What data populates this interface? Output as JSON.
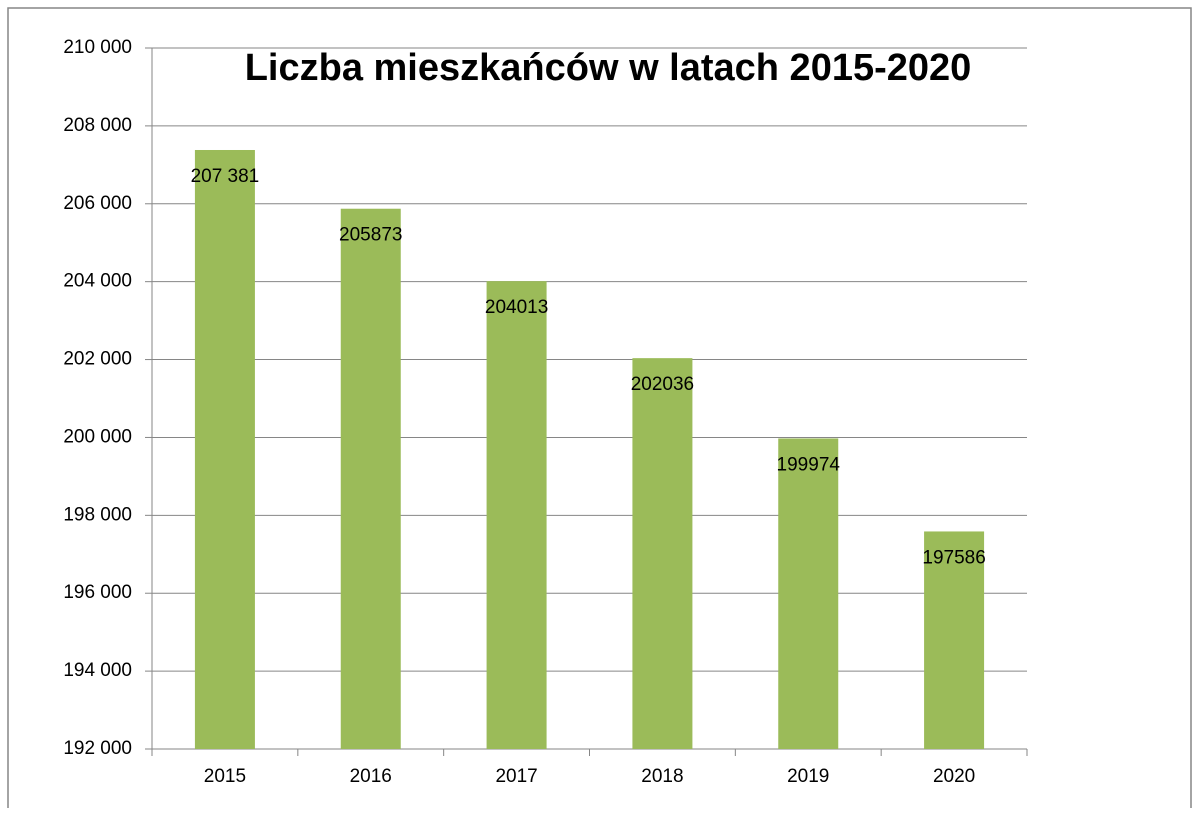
{
  "chart_data": {
    "type": "bar",
    "title": "Liczba mieszkańców w latach 2015-2020",
    "categories": [
      "2015",
      "2016",
      "2017",
      "2018",
      "2019",
      "2020"
    ],
    "values": [
      207381,
      205873,
      204013,
      202036,
      199974,
      197586
    ],
    "value_labels": [
      "207 381",
      "205873",
      "204013",
      "202036",
      "199974",
      "197586"
    ],
    "color": "#9bbb59",
    "ylim": [
      192000,
      210000
    ],
    "yticks": [
      {
        "value": 192000,
        "label": "192 000"
      },
      {
        "value": 194000,
        "label": "194 000"
      },
      {
        "value": 196000,
        "label": "196 000"
      },
      {
        "value": 198000,
        "label": "198 000"
      },
      {
        "value": 200000,
        "label": "200 000"
      },
      {
        "value": 202000,
        "label": "202 000"
      },
      {
        "value": 204000,
        "label": "204 000"
      },
      {
        "value": 206000,
        "label": "206 000"
      },
      {
        "value": 208000,
        "label": "208 000"
      },
      {
        "value": 210000,
        "label": "210 000"
      }
    ],
    "grid": true
  }
}
